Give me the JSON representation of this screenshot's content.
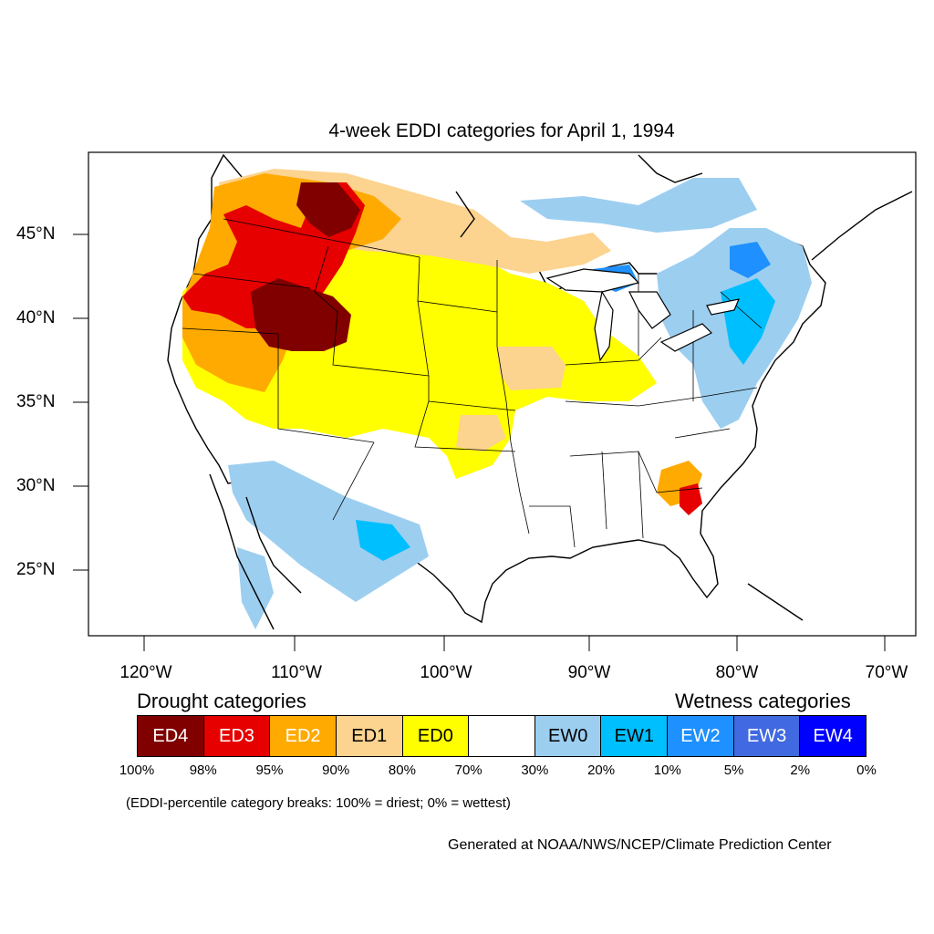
{
  "title": "4-week EDDI categories for April 1, 1994",
  "map": {
    "lat_labels": [
      "45°N",
      "40°N",
      "35°N",
      "30°N",
      "25°N"
    ],
    "lon_labels": [
      "120°W",
      "110°W",
      "100°W",
      "90°W",
      "80°W",
      "70°W"
    ]
  },
  "legend": {
    "drought_heading": "Drought categories",
    "wetness_heading": "Wetness categories",
    "categories": [
      {
        "label": "ED4",
        "color": "#800000",
        "text_color": "#ffffff"
      },
      {
        "label": "ED3",
        "color": "#e60000",
        "text_color": "#ffffff"
      },
      {
        "label": "ED2",
        "color": "#ffaa00",
        "text_color": "#ffffff"
      },
      {
        "label": "ED1",
        "color": "#fcd38f",
        "text_color": "#000000"
      },
      {
        "label": "ED0",
        "color": "#ffff00",
        "text_color": "#000000"
      },
      {
        "label": "",
        "color": "#ffffff",
        "text_color": "#000000"
      },
      {
        "label": "EW0",
        "color": "#9ccef0",
        "text_color": "#000000"
      },
      {
        "label": "EW1",
        "color": "#00bfff",
        "text_color": "#000000"
      },
      {
        "label": "EW2",
        "color": "#1e90ff",
        "text_color": "#ffffff"
      },
      {
        "label": "EW3",
        "color": "#4169e1",
        "text_color": "#ffffff"
      },
      {
        "label": "EW4",
        "color": "#0000ff",
        "text_color": "#ffffff"
      }
    ],
    "breaks": [
      "100%",
      "98%",
      "95%",
      "90%",
      "80%",
      "70%",
      "30%",
      "20%",
      "10%",
      "5%",
      "2%",
      "0%"
    ]
  },
  "note": "(EDDI-percentile category breaks: 100% = driest; 0% = wettest)",
  "credit": "Generated at NOAA/NWS/NCEP/Climate Prediction Center"
}
